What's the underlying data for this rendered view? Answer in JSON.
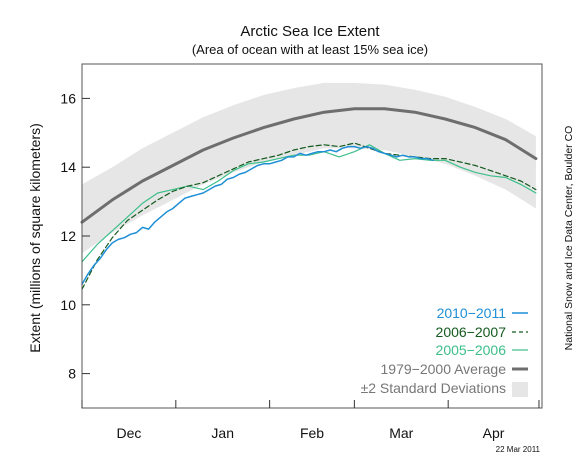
{
  "chart_data": {
    "type": "line",
    "title": "Arctic Sea Ice Extent",
    "subtitle": "(Area of ocean with at least 15% sea ice)",
    "ylabel": "Extent (millions of square kilometers)",
    "xlabel": "",
    "xlim": [
      0,
      152
    ],
    "ylim": [
      7,
      17
    ],
    "grid": false,
    "legend_position": "bottom-right",
    "y_ticks": [
      8,
      10,
      12,
      14,
      16
    ],
    "x_tick_days": [
      0,
      31,
      62,
      90,
      121,
      151
    ],
    "month_labels": [
      {
        "label": "Dec",
        "day": 15.5
      },
      {
        "label": "Jan",
        "day": 46.5
      },
      {
        "label": "Feb",
        "day": 76
      },
      {
        "label": "Mar",
        "day": 105.5
      },
      {
        "label": "Apr",
        "day": 136
      }
    ],
    "credit": "National Snow and Ice Data Center, Boulder CO",
    "date_stamp": "22 Mar 2011",
    "band": {
      "name": "±2 Standard Deviations",
      "color": "#e6e6e6",
      "x": [
        0,
        10,
        20,
        30,
        40,
        50,
        60,
        70,
        80,
        90,
        100,
        110,
        120,
        130,
        140,
        150
      ],
      "upper": [
        13.5,
        14.0,
        14.55,
        15.0,
        15.45,
        15.8,
        16.1,
        16.3,
        16.45,
        16.45,
        16.4,
        16.25,
        16.05,
        15.75,
        15.4,
        14.9
      ],
      "lower": [
        11.5,
        12.1,
        12.6,
        13.05,
        13.5,
        13.85,
        14.15,
        14.35,
        14.55,
        14.55,
        14.5,
        14.3,
        14.1,
        13.75,
        13.35,
        12.8
      ]
    },
    "series": [
      {
        "name": "2010−2011",
        "color": "#1f8fd6",
        "style": "solid",
        "width": 1.5,
        "x": [
          0,
          2,
          4,
          6,
          8,
          10,
          12,
          14,
          16,
          18,
          20,
          22,
          24,
          26,
          28,
          30,
          32,
          34,
          36,
          38,
          40,
          42,
          44,
          46,
          48,
          50,
          52,
          54,
          56,
          58,
          60,
          62,
          64,
          66,
          68,
          70,
          72,
          74,
          76,
          78,
          80,
          82,
          84,
          86,
          88,
          90,
          92,
          94,
          96,
          98,
          100,
          102,
          104,
          106,
          108,
          110,
          112,
          114,
          116
        ],
        "y": [
          10.6,
          10.9,
          11.15,
          11.35,
          11.6,
          11.8,
          11.9,
          11.95,
          12.05,
          12.1,
          12.25,
          12.2,
          12.4,
          12.55,
          12.7,
          12.8,
          12.95,
          13.1,
          13.15,
          13.2,
          13.25,
          13.35,
          13.45,
          13.5,
          13.65,
          13.7,
          13.8,
          13.85,
          13.95,
          14.05,
          14.1,
          14.1,
          14.15,
          14.2,
          14.3,
          14.3,
          14.4,
          14.35,
          14.4,
          14.45,
          14.45,
          14.5,
          14.45,
          14.55,
          14.6,
          14.6,
          14.55,
          14.6,
          14.55,
          14.45,
          14.4,
          14.35,
          14.3,
          14.35,
          14.3,
          14.3,
          14.25,
          14.25,
          14.2
        ]
      },
      {
        "name": "2006−2007",
        "color": "#145a1e",
        "style": "dashed",
        "width": 1.2,
        "x": [
          0,
          5,
          10,
          15,
          20,
          25,
          30,
          35,
          40,
          45,
          50,
          55,
          60,
          65,
          70,
          75,
          80,
          85,
          90,
          95,
          100,
          105,
          110,
          115,
          120,
          125,
          130,
          135,
          140,
          145,
          150
        ],
        "y": [
          10.45,
          11.3,
          11.95,
          12.45,
          12.75,
          13.05,
          13.3,
          13.45,
          13.55,
          13.75,
          13.95,
          14.15,
          14.25,
          14.35,
          14.5,
          14.6,
          14.65,
          14.6,
          14.7,
          14.55,
          14.4,
          14.35,
          14.3,
          14.25,
          14.25,
          14.15,
          14.05,
          13.9,
          13.75,
          13.6,
          13.35
        ]
      },
      {
        "name": "2005−2006",
        "color": "#3cbf8a",
        "style": "solid",
        "width": 1.2,
        "x": [
          0,
          5,
          10,
          15,
          20,
          25,
          30,
          35,
          40,
          45,
          50,
          55,
          60,
          65,
          70,
          75,
          80,
          85,
          90,
          95,
          100,
          105,
          110,
          115,
          120,
          125,
          130,
          135,
          140,
          145,
          150
        ],
        "y": [
          11.25,
          11.75,
          12.15,
          12.55,
          12.95,
          13.25,
          13.35,
          13.45,
          13.35,
          13.6,
          13.9,
          14.1,
          14.15,
          14.25,
          14.35,
          14.35,
          14.45,
          14.3,
          14.45,
          14.65,
          14.4,
          14.2,
          14.25,
          14.2,
          14.2,
          14.0,
          13.85,
          13.75,
          13.7,
          13.5,
          13.25
        ]
      },
      {
        "name": "1979−2000 Average",
        "color": "#6e6e6e",
        "style": "solid",
        "width": 3,
        "x": [
          0,
          10,
          20,
          30,
          40,
          50,
          60,
          70,
          80,
          90,
          100,
          110,
          120,
          130,
          140,
          150
        ],
        "y": [
          12.4,
          13.05,
          13.6,
          14.05,
          14.5,
          14.85,
          15.15,
          15.4,
          15.6,
          15.7,
          15.7,
          15.6,
          15.4,
          15.15,
          14.8,
          14.25
        ]
      }
    ]
  }
}
